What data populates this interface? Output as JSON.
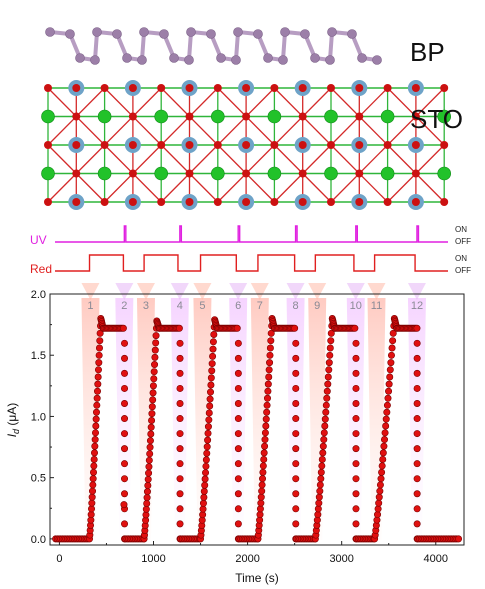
{
  "structure": {
    "bp_label": "BP",
    "sto_label": "STO",
    "colors": {
      "bp_atom": "#9c7fa8",
      "bp_bond": "#b79dc2",
      "sto_sr": "#6ea3c8",
      "sto_ti": "#22c22a",
      "sto_o": "#cc1111",
      "sto_bond_green": "#2fb53a",
      "sto_bond_red": "#d42a2a"
    }
  },
  "signals": {
    "uv": {
      "label": "UV",
      "on_label": "ON",
      "off_label": "OFF",
      "color": "#e020e0",
      "pulse_times": [
        690,
        1280,
        1900,
        2510,
        3150,
        3800
      ]
    },
    "red": {
      "label": "Red",
      "on_label": "ON",
      "off_label": "OFF",
      "color": "#e02020",
      "on_intervals": [
        [
          320,
          680
        ],
        [
          900,
          1260
        ],
        [
          1500,
          1880
        ],
        [
          2110,
          2500
        ],
        [
          2720,
          3130
        ],
        [
          3350,
          3780
        ]
      ]
    }
  },
  "chart_data": {
    "type": "scatter",
    "xlabel": "Time (s)",
    "ylabel": "I_d (μA)",
    "xlim": [
      -100,
      4300
    ],
    "ylim": [
      -0.05,
      2.0
    ],
    "x_ticks": [
      "0",
      "1000",
      "2000",
      "3000",
      "4000"
    ],
    "y_ticks": [
      "0.0",
      "0.5",
      "1.0",
      "1.5",
      "2.0"
    ],
    "step_labels": [
      "1",
      "2",
      "3",
      "4",
      "5",
      "6",
      "7",
      "8",
      "9",
      "10",
      "11",
      "12"
    ],
    "step_times": [
      330,
      690,
      920,
      1280,
      1520,
      1900,
      2130,
      2510,
      2740,
      3150,
      3370,
      3800
    ],
    "series": [
      {
        "color": "#e01010",
        "cycles": [
          {
            "rise_start": 320,
            "rise_end": 440,
            "plateau_end": 690,
            "peak": 1.8,
            "plateau": 1.72
          },
          {
            "rise_start": 900,
            "rise_end": 1035,
            "plateau_end": 1280,
            "peak": 1.78,
            "plateau": 1.72
          },
          {
            "rise_start": 1500,
            "rise_end": 1650,
            "plateau_end": 1900,
            "peak": 1.79,
            "plateau": 1.72
          },
          {
            "rise_start": 2110,
            "rise_end": 2260,
            "plateau_end": 2510,
            "peak": 1.8,
            "plateau": 1.72
          },
          {
            "rise_start": 2720,
            "rise_end": 2900,
            "plateau_end": 3150,
            "peak": 1.8,
            "plateau": 1.72
          },
          {
            "rise_start": 3350,
            "rise_end": 3560,
            "plateau_end": 3800,
            "peak": 1.8,
            "plateau": 1.72
          }
        ],
        "baseline": 0.0,
        "x_end": 4250
      }
    ]
  }
}
